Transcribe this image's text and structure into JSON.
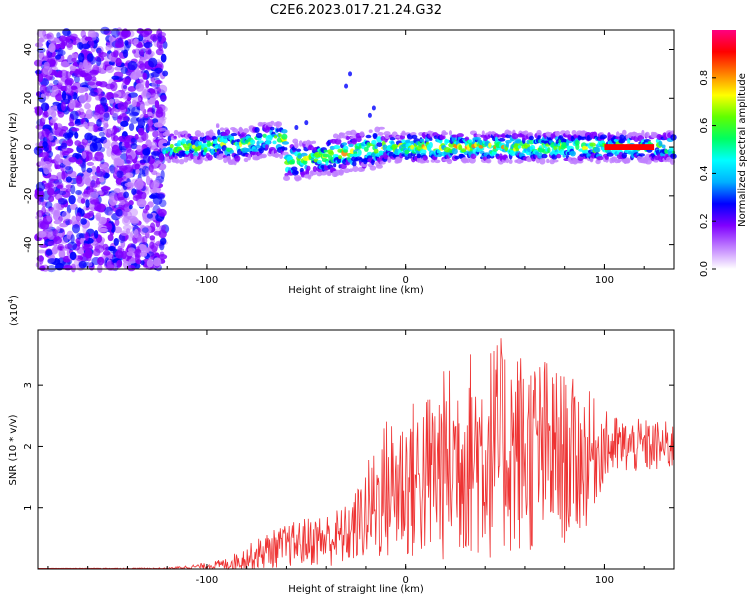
{
  "title": "C2E6.2023.017.21.24.G32",
  "chart_data": [
    {
      "type": "heatmap",
      "xlabel": "Height of straight line (km)",
      "ylabel": "Frequency (Hz)",
      "xlim": [
        -185,
        135
      ],
      "ylim": [
        -50,
        48
      ],
      "xticks": [
        -100,
        0,
        100
      ],
      "yticks": [
        -40,
        -20,
        0,
        20,
        40
      ],
      "colorbar": {
        "label": "Normalized spectral amplitude",
        "range": [
          0,
          1
        ],
        "ticks": [
          0.0,
          0.2,
          0.4,
          0.6,
          0.8
        ],
        "colors": [
          "#ffffff",
          "#c080ff",
          "#8000ff",
          "#0000ff",
          "#00b0ff",
          "#00ffff",
          "#00ff60",
          "#60ff00",
          "#ffff00",
          "#ff8000",
          "#ff0000",
          "#ff0080"
        ]
      },
      "features": {
        "noise_region_x": [
          -185,
          -121
        ],
        "signal_band_center_hz": 0,
        "signal_start_x": -121,
        "strong_line_x": [
          100,
          125
        ]
      }
    },
    {
      "type": "line",
      "xlabel": "Height of straight line (km)",
      "ylabel": "SNR (10 * v/v)",
      "yscale_label": "(x10",
      "yscale_exp": "4",
      "yscale_close": ")",
      "xlim": [
        -185,
        135
      ],
      "ylim": [
        0,
        3.9
      ],
      "xticks": [
        -100,
        0,
        100
      ],
      "yticks": [
        1,
        2,
        3
      ],
      "color": "#ee3333",
      "envelope": {
        "x": [
          -185,
          -120,
          -100,
          -90,
          -80,
          -70,
          -60,
          -50,
          -40,
          -30,
          -25,
          -20,
          -15,
          -10,
          0,
          10,
          20,
          30,
          40,
          50,
          60,
          70,
          80,
          90,
          100,
          110,
          120,
          135
        ],
        "mean": [
          0.01,
          0.01,
          0.05,
          0.08,
          0.18,
          0.3,
          0.38,
          0.45,
          0.48,
          0.55,
          0.7,
          0.9,
          1.1,
          1.3,
          1.4,
          1.5,
          1.7,
          1.9,
          1.9,
          2.0,
          1.9,
          1.9,
          1.8,
          1.8,
          2.0,
          2.0,
          2.0,
          2.0
        ],
        "amp": [
          0.0,
          0.01,
          0.05,
          0.1,
          0.2,
          0.3,
          0.35,
          0.4,
          0.45,
          0.5,
          0.6,
          0.8,
          1.0,
          1.2,
          1.3,
          1.4,
          1.6,
          1.7,
          1.8,
          1.8,
          1.7,
          1.6,
          1.4,
          1.2,
          0.6,
          0.45,
          0.45,
          0.4
        ]
      }
    }
  ]
}
